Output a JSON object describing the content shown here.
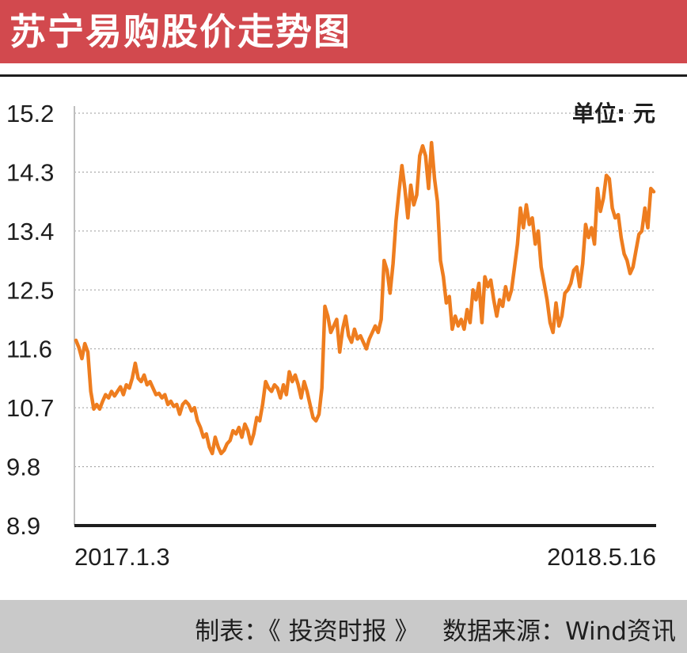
{
  "header": {
    "title": "苏宁易购股价走势图"
  },
  "unit_label": "单位: 元",
  "footer": {
    "made_by": "制表：《 投资时报 》",
    "source": "数据来源：Wind资讯"
  },
  "colors": {
    "header_bg": "#d2494e",
    "line": "#ee7d1f",
    "footer_bg": "#c9c9c9"
  },
  "chart_data": {
    "type": "line",
    "title": "苏宁易购股价走势图",
    "ylabel": "单位: 元",
    "ylim": [
      8.9,
      15.2
    ],
    "yticks": [
      "15.2",
      "14.3",
      "13.4",
      "12.5",
      "11.6",
      "10.7",
      "9.8",
      "8.9"
    ],
    "x_start_label": "2017.1.3",
    "x_end_label": "2018.5.16",
    "grid": "horizontal-dotted",
    "series": [
      {
        "values": [
          11.73,
          11.62,
          11.45,
          11.68,
          11.55,
          10.95,
          10.68,
          10.75,
          10.68,
          10.8,
          10.9,
          10.85,
          10.95,
          10.88,
          10.95,
          11.02,
          10.9,
          11.05,
          11.0,
          11.15,
          11.38,
          11.15,
          11.1,
          11.2,
          11.05,
          11.1,
          11.0,
          10.9,
          10.92,
          10.85,
          10.9,
          10.75,
          10.8,
          10.72,
          10.75,
          10.6,
          10.75,
          10.8,
          10.75,
          10.65,
          10.7,
          10.5,
          10.4,
          10.25,
          10.3,
          10.1,
          10.0,
          10.25,
          10.1,
          10.0,
          10.05,
          10.15,
          10.2,
          10.35,
          10.3,
          10.4,
          10.25,
          10.45,
          10.35,
          10.15,
          10.3,
          10.55,
          10.5,
          10.75,
          11.1,
          11.0,
          10.95,
          11.05,
          11.0,
          10.85,
          11.05,
          10.9,
          11.25,
          11.1,
          11.2,
          11.05,
          10.85,
          11.1,
          10.95,
          10.75,
          10.55,
          10.5,
          10.6,
          11.0,
          12.25,
          12.1,
          11.85,
          11.95,
          12.05,
          11.55,
          11.9,
          12.1,
          11.8,
          11.7,
          11.9,
          11.75,
          11.8,
          11.7,
          11.6,
          11.75,
          11.85,
          11.95,
          11.85,
          12.05,
          12.95,
          12.8,
          12.45,
          12.9,
          13.55,
          14.0,
          14.4,
          14.05,
          13.6,
          14.1,
          13.8,
          13.95,
          14.55,
          14.7,
          14.55,
          14.05,
          14.75,
          14.2,
          13.85,
          12.95,
          12.7,
          12.3,
          12.4,
          11.9,
          12.1,
          11.95,
          12.05,
          11.9,
          12.2,
          12.0,
          12.5,
          12.35,
          12.6,
          12.0,
          12.7,
          12.55,
          12.65,
          12.35,
          12.1,
          12.35,
          12.25,
          12.55,
          12.35,
          12.5,
          12.85,
          13.2,
          13.75,
          13.45,
          13.8,
          13.5,
          13.6,
          13.2,
          13.4,
          12.85,
          12.6,
          12.35,
          12.0,
          11.85,
          12.3,
          11.95,
          12.1,
          12.45,
          12.5,
          12.6,
          12.8,
          12.85,
          12.55,
          12.9,
          13.5,
          13.3,
          13.45,
          13.2,
          14.05,
          13.7,
          13.9,
          14.25,
          14.2,
          13.75,
          13.6,
          13.65,
          13.3,
          13.05,
          12.95,
          12.75,
          12.85,
          13.1,
          13.35,
          13.4,
          13.75,
          13.45,
          14.05,
          14.0
        ]
      }
    ]
  }
}
